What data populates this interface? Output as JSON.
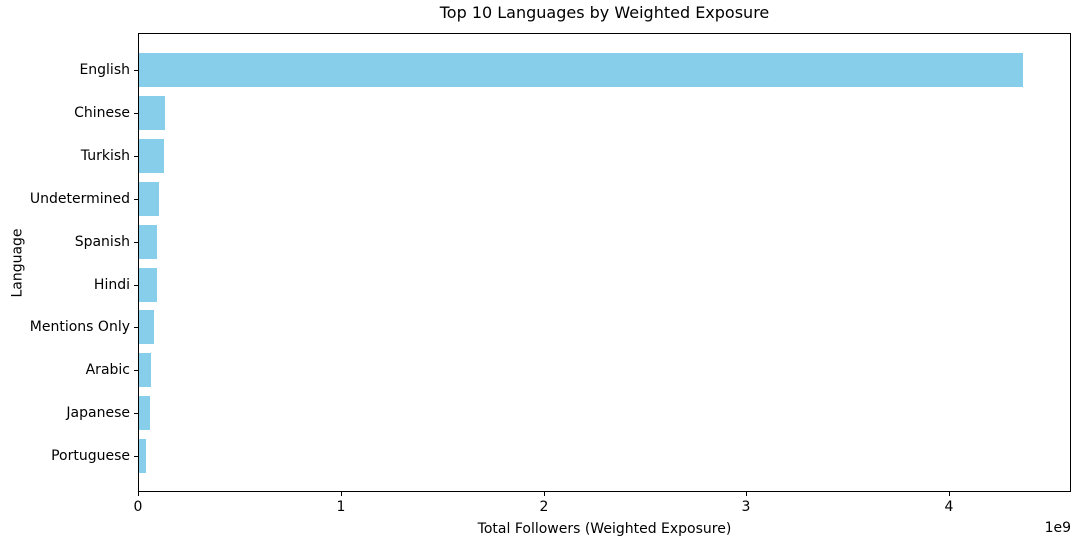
{
  "chart_data": {
    "type": "bar",
    "orientation": "horizontal",
    "title": "Top 10 Languages by Weighted Exposure",
    "xlabel": "Total Followers (Weighted Exposure)",
    "ylabel": "Language",
    "offset_text": "1e9",
    "categories": [
      "English",
      "Chinese",
      "Turkish",
      "Undetermined",
      "Spanish",
      "Hindi",
      "Mentions Only",
      "Arabic",
      "Japanese",
      "Portuguese"
    ],
    "values": [
      4360000000,
      130000000,
      124000000,
      100000000,
      90000000,
      89000000,
      76000000,
      61000000,
      56000000,
      35000000
    ],
    "xlim": [
      0,
      4600000000
    ],
    "x_ticks": [
      0,
      1000000000,
      2000000000,
      3000000000,
      4000000000
    ],
    "x_tick_labels": [
      "0",
      "1",
      "2",
      "3",
      "4"
    ],
    "bar_color": "#87CEEB",
    "axis_color": "#000000",
    "grid": false,
    "legend": null
  }
}
